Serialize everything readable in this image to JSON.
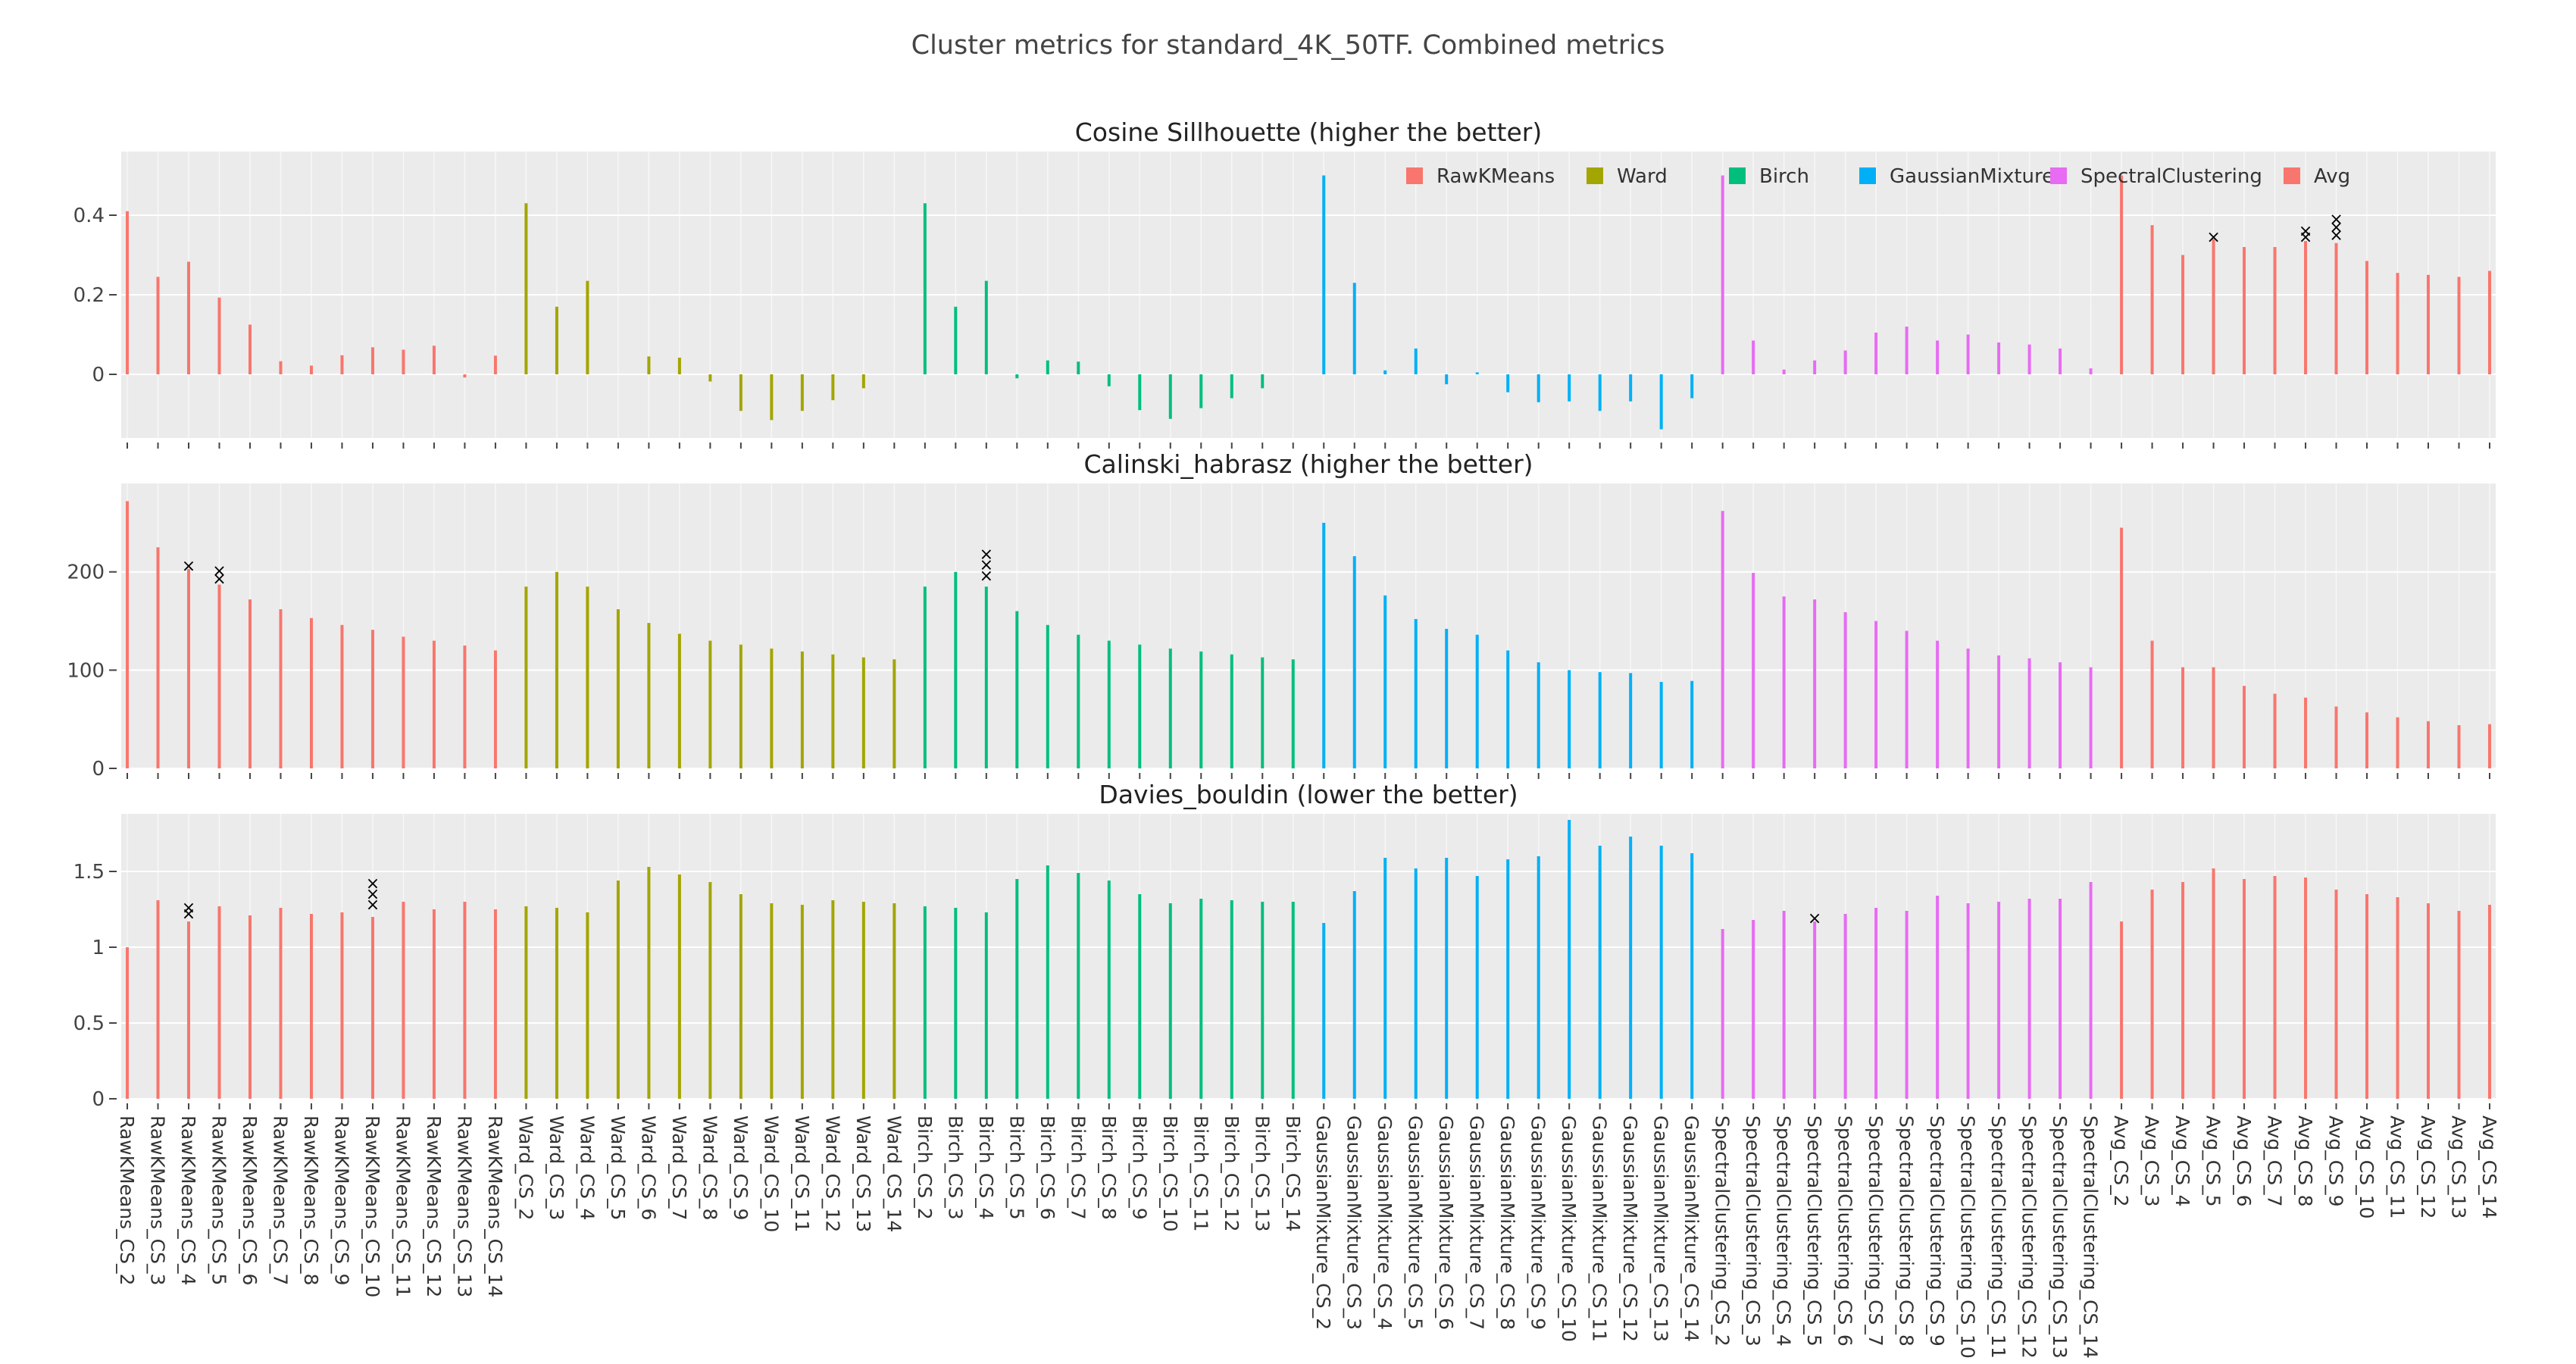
{
  "title": "Cluster metrics for standard_4K_50TF. Combined metrics",
  "legend_position": "top-right of first panel",
  "colors": {
    "RawKMeans": "#F8766D",
    "Ward": "#A3A500",
    "Birch": "#00BF7D",
    "GaussianMixture": "#00B0F6",
    "SpectralClustering": "#E76BF3",
    "Avg": "#F8766D",
    "plot_bg": "#EBEBEB",
    "grid": "#FFFFFF",
    "marker": "#000000"
  },
  "chart_data": {
    "type": "bar",
    "groups": [
      "RawKMeans",
      "Ward",
      "Birch",
      "GaussianMixture",
      "SpectralClustering",
      "Avg"
    ],
    "categories": [
      "RawKMeans_CS_2",
      "RawKMeans_CS_3",
      "RawKMeans_CS_4",
      "RawKMeans_CS_5",
      "RawKMeans_CS_6",
      "RawKMeans_CS_7",
      "RawKMeans_CS_8",
      "RawKMeans_CS_9",
      "RawKMeans_CS_10",
      "RawKMeans_CS_11",
      "RawKMeans_CS_12",
      "RawKMeans_CS_13",
      "RawKMeans_CS_14",
      "Ward_CS_2",
      "Ward_CS_3",
      "Ward_CS_4",
      "Ward_CS_5",
      "Ward_CS_6",
      "Ward_CS_7",
      "Ward_CS_8",
      "Ward_CS_9",
      "Ward_CS_10",
      "Ward_CS_11",
      "Ward_CS_12",
      "Ward_CS_13",
      "Ward_CS_14",
      "Birch_CS_2",
      "Birch_CS_3",
      "Birch_CS_4",
      "Birch_CS_5",
      "Birch_CS_6",
      "Birch_CS_7",
      "Birch_CS_8",
      "Birch_CS_9",
      "Birch_CS_10",
      "Birch_CS_11",
      "Birch_CS_12",
      "Birch_CS_13",
      "Birch_CS_14",
      "GaussianMixture_CS_2",
      "GaussianMixture_CS_3",
      "GaussianMixture_CS_4",
      "GaussianMixture_CS_5",
      "GaussianMixture_CS_6",
      "GaussianMixture_CS_7",
      "GaussianMixture_CS_8",
      "GaussianMixture_CS_9",
      "GaussianMixture_CS_10",
      "GaussianMixture_CS_11",
      "GaussianMixture_CS_12",
      "GaussianMixture_CS_13",
      "GaussianMixture_CS_14",
      "SpectralClustering_CS_2",
      "SpectralClustering_CS_3",
      "SpectralClustering_CS_4",
      "SpectralClustering_CS_5",
      "SpectralClustering_CS_6",
      "SpectralClustering_CS_7",
      "SpectralClustering_CS_8",
      "SpectralClustering_CS_9",
      "SpectralClustering_CS_10",
      "SpectralClustering_CS_11",
      "SpectralClustering_CS_12",
      "SpectralClustering_CS_13",
      "SpectralClustering_CS_14",
      "Avg_CS_2",
      "Avg_CS_3",
      "Avg_CS_4",
      "Avg_CS_5",
      "Avg_CS_6",
      "Avg_CS_7",
      "Avg_CS_8",
      "Avg_CS_9",
      "Avg_CS_10",
      "Avg_CS_11",
      "Avg_CS_12",
      "Avg_CS_13",
      "Avg_CS_14"
    ],
    "panels": [
      {
        "subtitle": "Cosine Sillhouette (higher the better)",
        "ylim": [
          -0.16,
          0.56
        ],
        "yticks": [
          0,
          0.2,
          0.4
        ],
        "ytick_labels": [
          "0",
          "0.2",
          "0.4"
        ],
        "values": [
          0.41,
          0.245,
          0.283,
          0.193,
          0.125,
          0.033,
          0.022,
          0.048,
          0.068,
          0.062,
          0.072,
          -0.008,
          0.047,
          0.43,
          0.17,
          0.235,
          0.0,
          0.045,
          0.042,
          -0.018,
          -0.092,
          -0.115,
          -0.092,
          -0.065,
          -0.035,
          0.0,
          0.43,
          0.17,
          0.235,
          -0.01,
          0.035,
          0.032,
          -0.03,
          -0.09,
          -0.112,
          -0.085,
          -0.06,
          -0.035,
          0.0,
          0.5,
          0.23,
          0.01,
          0.065,
          -0.025,
          0.005,
          -0.045,
          -0.07,
          -0.068,
          -0.092,
          -0.068,
          -0.138,
          -0.06,
          0.5,
          0.085,
          0.012,
          0.035,
          0.06,
          0.105,
          0.12,
          0.085,
          0.1,
          0.08,
          0.075,
          0.065,
          0.015,
          0.5,
          0.375,
          0.3,
          0.34,
          0.32,
          0.32,
          0.335,
          0.33,
          0.285,
          0.255,
          0.25,
          0.245,
          0.26
        ],
        "markers": [
          {
            "category": "Avg_CS_5",
            "values": [
              0.345
            ]
          },
          {
            "category": "Avg_CS_8",
            "values": [
              0.345,
              0.36
            ]
          },
          {
            "category": "Avg_CS_9",
            "values": [
              0.35,
              0.37,
              0.39
            ]
          }
        ]
      },
      {
        "subtitle": "Calinski_habrasz (higher the better)",
        "ylim": [
          0,
          290
        ],
        "yticks": [
          0,
          100,
          200
        ],
        "ytick_labels": [
          "0",
          "100",
          "200"
        ],
        "values": [
          272,
          225,
          203,
          187,
          172,
          162,
          153,
          146,
          141,
          134,
          130,
          125,
          120,
          185,
          200,
          185,
          162,
          148,
          137,
          130,
          126,
          122,
          119,
          116,
          113,
          111,
          185,
          200,
          185,
          160,
          146,
          136,
          130,
          126,
          122,
          119,
          116,
          113,
          111,
          250,
          216,
          176,
          152,
          142,
          136,
          120,
          108,
          100,
          98,
          97,
          88,
          89,
          262,
          199,
          175,
          172,
          159,
          150,
          140,
          130,
          122,
          115,
          112,
          108,
          103,
          245,
          130,
          103,
          103,
          84,
          76,
          72,
          63,
          57,
          52,
          48,
          44,
          45
        ],
        "markers": [
          {
            "category": "RawKMeans_CS_4",
            "values": [
              206
            ]
          },
          {
            "category": "RawKMeans_CS_5",
            "values": [
              193,
              201
            ]
          },
          {
            "category": "Birch_CS_4",
            "values": [
              196,
              207,
              218
            ]
          }
        ]
      },
      {
        "subtitle": "Davies_bouldin (lower the better)",
        "ylim": [
          0,
          1.88
        ],
        "yticks": [
          0,
          0.5,
          1,
          1.5
        ],
        "ytick_labels": [
          "0",
          "0.5",
          "1",
          "1.5"
        ],
        "values": [
          1.0,
          1.31,
          1.17,
          1.27,
          1.21,
          1.26,
          1.22,
          1.23,
          1.2,
          1.3,
          1.25,
          1.3,
          1.25,
          1.27,
          1.26,
          1.23,
          1.44,
          1.53,
          1.48,
          1.43,
          1.35,
          1.29,
          1.28,
          1.31,
          1.3,
          1.29,
          1.27,
          1.26,
          1.23,
          1.45,
          1.54,
          1.49,
          1.44,
          1.35,
          1.29,
          1.32,
          1.31,
          1.3,
          1.3,
          1.16,
          1.37,
          1.59,
          1.52,
          1.59,
          1.47,
          1.58,
          1.6,
          1.84,
          1.67,
          1.73,
          1.67,
          1.62,
          1.12,
          1.18,
          1.24,
          1.17,
          1.22,
          1.26,
          1.24,
          1.34,
          1.29,
          1.3,
          1.32,
          1.32,
          1.43,
          1.17,
          1.38,
          1.43,
          1.52,
          1.45,
          1.47,
          1.46,
          1.38,
          1.35,
          1.33,
          1.29,
          1.24,
          1.28
        ],
        "markers": [
          {
            "category": "RawKMeans_CS_4",
            "values": [
              1.22,
              1.26
            ]
          },
          {
            "category": "RawKMeans_CS_10",
            "values": [
              1.28,
              1.35,
              1.42
            ]
          },
          {
            "category": "SpectralClustering_CS_5",
            "values": [
              1.19
            ]
          }
        ]
      }
    ],
    "legend": [
      "RawKMeans",
      "Ward",
      "Birch",
      "GaussianMixture",
      "SpectralClustering",
      "Avg"
    ]
  }
}
